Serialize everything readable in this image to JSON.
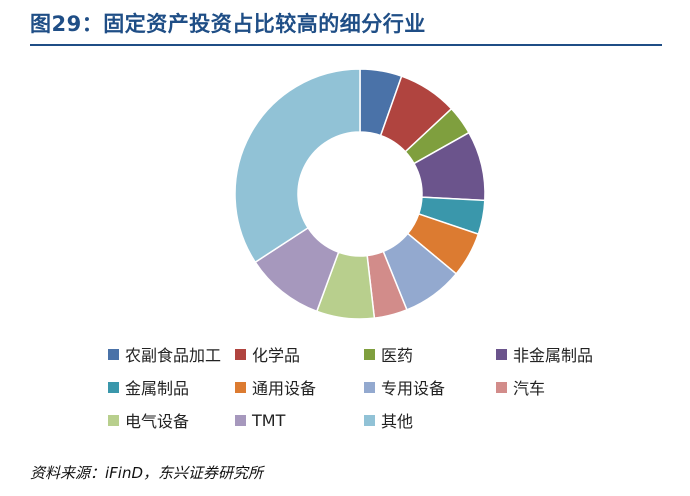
{
  "title": "图29：固定资产投资占比较高的细分行业",
  "source": "资料来源：iFinD，东兴证券研究所",
  "chart_data": {
    "type": "pie",
    "donut": true,
    "categories": [
      "农副食品加工",
      "化学品",
      "医药",
      "非金属制品",
      "金属制品",
      "通用设备",
      "专用设备",
      "汽车",
      "电气设备",
      "TMT",
      "其他"
    ],
    "values": [
      5.3,
      7.5,
      3.7,
      8.8,
      4.3,
      5.7,
      7.7,
      4.2,
      7.3,
      10.0,
      33.5
    ],
    "colors": [
      "#4a72a8",
      "#b0443f",
      "#7f9f3e",
      "#6b548c",
      "#3a97ab",
      "#dc7b31",
      "#93a9cf",
      "#d28c8a",
      "#b8cf8d",
      "#a698bd",
      "#91c2d6"
    ],
    "legend_position": "bottom"
  }
}
